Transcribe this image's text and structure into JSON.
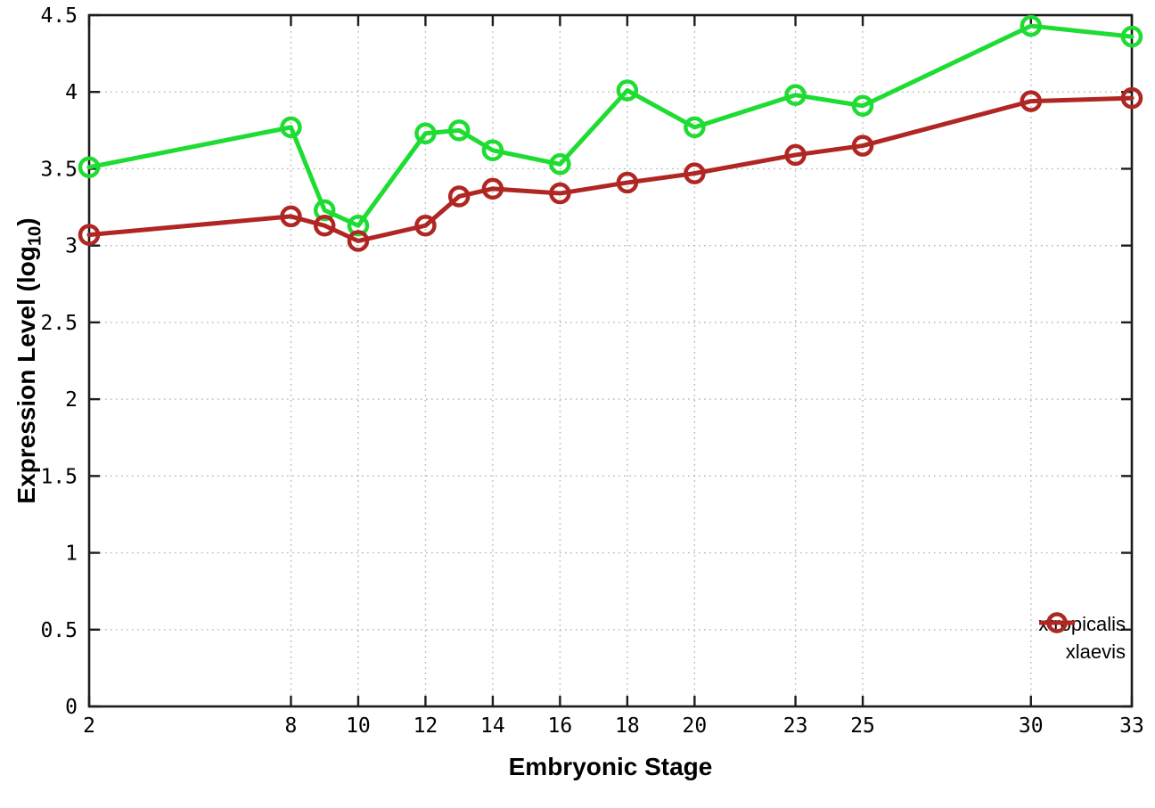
{
  "chart_data": {
    "type": "line",
    "title": "",
    "xlabel": "Embryonic Stage",
    "ylabel": {
      "main": "Expression Level (log",
      "sub": "10",
      "end": ")"
    },
    "x": [
      2,
      8,
      9,
      10,
      12,
      13,
      14,
      16,
      18,
      20,
      23,
      25,
      30,
      33
    ],
    "series": [
      {
        "name": "xtropicalis",
        "color": "#1edc32",
        "values": [
          3.51,
          3.77,
          3.23,
          3.13,
          3.73,
          3.75,
          3.62,
          3.53,
          4.01,
          3.77,
          3.98,
          3.91,
          4.43,
          4.36
        ]
      },
      {
        "name": "xlaevis",
        "color": "#b02622",
        "values": [
          3.07,
          3.19,
          3.13,
          3.03,
          3.13,
          3.32,
          3.37,
          3.34,
          3.41,
          3.47,
          3.59,
          3.65,
          3.94,
          3.96
        ]
      }
    ],
    "xlim": [
      2,
      33
    ],
    "ylim": [
      0,
      4.5
    ],
    "xticks": [
      "2",
      "8",
      "10",
      "12",
      "14",
      "16",
      "18",
      "20",
      "23",
      "25",
      "30",
      "33"
    ],
    "yticks": [
      "0",
      "0.5",
      "1",
      "1.5",
      "2",
      "2.5",
      "3",
      "3.5",
      "4",
      "4.5"
    ],
    "grid": true,
    "legend_position": "bottom-right",
    "grid_color": "#b4b4b4",
    "border_color": "#1c1c1c",
    "tick_label_color": "#000000"
  }
}
